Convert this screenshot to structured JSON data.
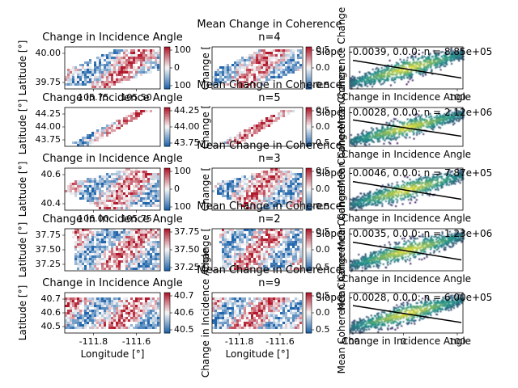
{
  "figure": {
    "background": "#ffffff"
  },
  "colors": {
    "positive": "#b2182b",
    "negative": "#2166ac",
    "neutral": "#f7f7f7",
    "density_low": "#440154",
    "density_mid": "#21918c",
    "density_high": "#fde725",
    "fit_line": "#000000"
  },
  "chart_data": [
    {
      "type": "heatmap",
      "row": 0,
      "col": 0,
      "title": "Change in Incidence Angle",
      "ylabel": "Latitude [°]",
      "xlabel": "",
      "yticks": [
        "40.00",
        "39.75"
      ],
      "xticks": [
        "105.75",
        "105.50"
      ],
      "colorbar": {
        "ticks": [
          "100",
          "0",
          "100"
        ]
      },
      "swath": "tilted"
    },
    {
      "type": "heatmap",
      "row": 0,
      "col": 1,
      "title": "Mean Change in Coherence\nn=4",
      "ylabel": "Change [",
      "xlabel": "",
      "colorbar": {
        "ticks": [
          "0.5",
          "0.0",
          "0.5"
        ]
      },
      "swath": "tilted"
    },
    {
      "type": "scatter",
      "row": 0,
      "col": 2,
      "title": "Slope: -0.0039, 0.0.0: n = 8.85e+05",
      "ylabel": "Mean Coherence Change",
      "xlabel": "Change in Incidence Angle",
      "xticks": [
        "100"
      ],
      "slope": -0.0039
    },
    {
      "type": "heatmap",
      "row": 1,
      "col": 0,
      "title": "Change in Incidence Angle",
      "ylabel": "Latitude [°]",
      "xlabel": "",
      "yticks": [
        "44.25",
        "44.00",
        "43.75"
      ],
      "colorbar": {
        "ticks": [
          "44.25",
          "44.00",
          "43.75"
        ]
      },
      "swath": "narrow"
    },
    {
      "type": "heatmap",
      "row": 1,
      "col": 1,
      "title": "Mean Change in Coherence\nn=5",
      "ylabel": "Change [",
      "xlabel": "",
      "colorbar": {
        "ticks": [
          "0.5",
          "0.0",
          "0.5"
        ]
      },
      "swath": "narrow"
    },
    {
      "type": "scatter",
      "row": 1,
      "col": 2,
      "title": "Slope: -0.0028, 0.0.0: n = 2.12e+06",
      "ylabel": "Mean Coherence Change",
      "xlabel": "Change in Incidence Angle",
      "slope": -0.0028
    },
    {
      "type": "heatmap",
      "row": 2,
      "col": 0,
      "title": "Change in Incidence Angle",
      "ylabel": "Latitude [°]",
      "xlabel": "",
      "yticks": [
        "40.6",
        "40.4"
      ],
      "xticks": [
        "106.00",
        "105.75"
      ],
      "colorbar": {
        "ticks": [
          "100",
          "0",
          "100"
        ]
      },
      "swath": "wide"
    },
    {
      "type": "heatmap",
      "row": 2,
      "col": 1,
      "title": "Mean Change in Coherence\nn=3",
      "ylabel": "Change [",
      "xlabel": "",
      "colorbar": {
        "ticks": [
          "0.5",
          "0.0",
          "0.5"
        ]
      },
      "swath": "wide"
    },
    {
      "type": "scatter",
      "row": 2,
      "col": 2,
      "title": "Slope: -0.0046, 0.0.0: n = 7.87e+05",
      "ylabel": "Mean Coherence Change",
      "xlabel": "Change in Incidence Angle",
      "slope": -0.0046
    },
    {
      "type": "heatmap",
      "row": 3,
      "col": 0,
      "title": "Change in Incidence Angle",
      "ylabel": "Latitude [°]",
      "xlabel": "",
      "yticks": [
        "37.75",
        "37.50",
        "37.25"
      ],
      "colorbar": {
        "ticks": [
          "37.75",
          "37.50",
          "37.25"
        ]
      },
      "swath": "full"
    },
    {
      "type": "heatmap",
      "row": 3,
      "col": 1,
      "title": "Mean Change in Coherence\nn=2",
      "ylabel": "Change [",
      "xlabel": "",
      "colorbar": {
        "ticks": [
          "0.5",
          "0.0",
          "0.5"
        ]
      },
      "swath": "full"
    },
    {
      "type": "scatter",
      "row": 3,
      "col": 2,
      "title": "Slope: -0.0035, 0.0.0: n = 1.23e+06",
      "ylabel": "Mean Coherence Change",
      "xlabel": "Change in Incidence Angle",
      "slope": -0.0035
    },
    {
      "type": "heatmap",
      "row": 4,
      "col": 0,
      "title": "Change in Incidence Angle",
      "ylabel": "Latitude [°]",
      "xlabel": "Longitude [°]",
      "yticks": [
        "40.7",
        "40.6",
        "40.5"
      ],
      "xticks": [
        "-111.8",
        "-111.6"
      ],
      "colorbar": {
        "ticks": [
          "40.7",
          "40.6",
          "40.5"
        ]
      },
      "swath": "rect"
    },
    {
      "type": "heatmap",
      "row": 4,
      "col": 1,
      "title": "Mean Change in Coherence\nn=9",
      "ylabel": "Change in Incidence Angle",
      "xlabel": "Longitude [°]",
      "xticks": [
        "-111.8",
        "-111.6"
      ],
      "colorbar": {
        "ticks": [
          "0.5",
          "0.0",
          "0.5"
        ]
      },
      "swath": "rect"
    },
    {
      "type": "scatter",
      "row": 4,
      "col": 2,
      "title": "Slope: -0.0028, 0.0.0: n = 6.00e+05",
      "ylabel": "Mean Coherence Change",
      "xlabel": "Change in Incidence Angle",
      "xticks": [
        "-100",
        "0",
        "100"
      ],
      "xlim": [
        -100,
        110
      ],
      "slope": -0.0028
    }
  ]
}
